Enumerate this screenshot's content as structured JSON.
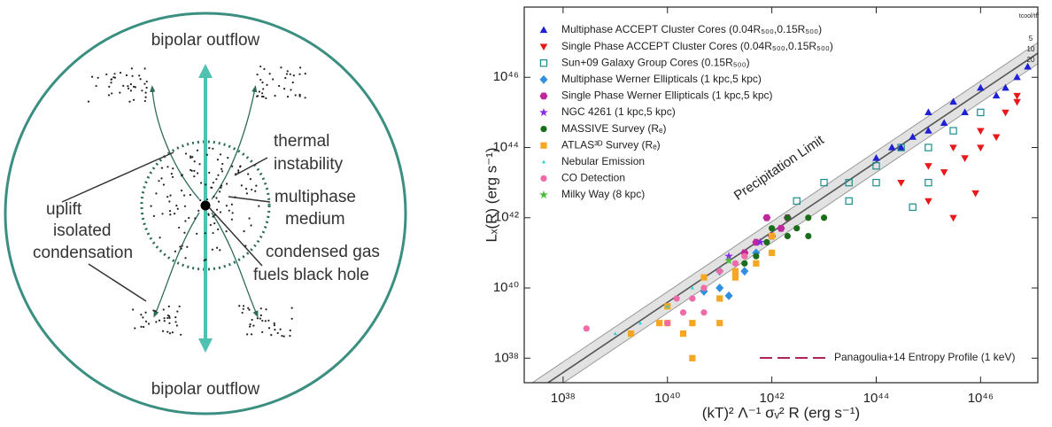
{
  "diagram": {
    "top_label": "bipolar outflow",
    "bottom_label": "bipolar outflow",
    "thermal_label": [
      "thermal",
      "instability"
    ],
    "uplift_label": "uplift",
    "medium_label": [
      "multiphase",
      "medium"
    ],
    "isolated_label": [
      "isolated",
      "condensation"
    ],
    "fuel_label": [
      "condensed gas",
      "fuels black hole"
    ]
  },
  "chart_data": {
    "type": "scatter",
    "xlabel": "(kT)² Λ⁻¹ σᵥ² R (erg s⁻¹)",
    "ylabel": "Lₓ(R)  (erg s⁻¹)",
    "xscale": "log",
    "yscale": "log",
    "xlim": [
      1.8e+37,
      1.25e+47
    ],
    "ylim": [
      2e+37,
      1e+48
    ],
    "xticks": [
      {
        "value": 1e+38,
        "label": "10³⁸"
      },
      {
        "value": 1e+40,
        "label": "10⁴⁰"
      },
      {
        "value": 1e+42,
        "label": "10⁴²"
      },
      {
        "value": 1e+44,
        "label": "10⁴⁴"
      },
      {
        "value": 1e+46,
        "label": "10⁴⁶"
      }
    ],
    "yticks": [
      {
        "value": 1e+38,
        "label": "10³⁸"
      },
      {
        "value": 1e+40,
        "label": "10⁴⁰"
      },
      {
        "value": 1e+42,
        "label": "10⁴²"
      },
      {
        "value": 1e+44,
        "label": "10⁴⁴"
      },
      {
        "value": 1e+46,
        "label": "10⁴⁶"
      }
    ],
    "legend": "upper left",
    "annotation": "Precipitation Limit",
    "reference_header": "tcool/tff",
    "reference_lines": [
      {
        "label": "5",
        "x": [
          1e+37,
          1e+48
        ],
        "y": [
          7.8e+36,
          7.8e+47
        ]
      },
      {
        "label": "10",
        "x": [
          1e+37,
          1e+48
        ],
        "y": [
          3.9e+36,
          3.9e+47
        ]
      },
      {
        "label": "20",
        "x": [
          1e+37,
          1e+48
        ],
        "y": [
          1.95e+36,
          1.95e+47
        ]
      }
    ],
    "extra_legend": {
      "name": "Panagoulia+14 Entropy Profile (1 keV)",
      "color": "#b0245c"
    },
    "series": [
      {
        "name": "Multiphase ACCEPT Cluster Cores (0.04R₅₀₀,0.15R₅₀₀)",
        "color": "#1f1fd6",
        "marker": "triangle",
        "open": false,
        "x": [
          1e+45,
          3e+45,
          1e+46,
          5e+46,
          2e+46,
          2e+45,
          5e+44,
          1e+44,
          3e+44,
          1e+45,
          8e+46,
          3e+46,
          5e+45,
          2e+44
        ],
        "values": [
          1e+45,
          2e+45,
          5e+45,
          1e+46,
          3e+45,
          5e+44,
          2e+44,
          5e+43,
          1e+44,
          3e+44,
          2e+46,
          5e+45,
          1e+45,
          1e+44
        ]
      },
      {
        "name": "Single Phase ACCEPT Cluster Cores (0.04R₅₀₀,0.15R₅₀₀)",
        "color": "#e8191b",
        "marker": "triangle-down",
        "open": false,
        "x": [
          3e+44,
          1e+45,
          3e+45,
          1e+46,
          3e+46,
          5e+46,
          2e+45,
          5e+45,
          1e+46,
          2e+46,
          1e+45,
          3e+45,
          8e+45,
          5e+46
        ],
        "values": [
          1e+43,
          3e+43,
          1e+44,
          3e+44,
          1e+45,
          3e+45,
          2e+43,
          5e+43,
          1e+44,
          2e+44,
          3e+42,
          1e+42,
          5e+42,
          2e+45
        ]
      },
      {
        "name": "Sun+09 Galaxy Group Cores (0.15R₅₀₀)",
        "color": "#1c8c8c",
        "marker": "square",
        "open": true,
        "x": [
          3e+42,
          1e+43,
          3e+43,
          1e+44,
          3e+44,
          1e+45,
          3e+45,
          1e+44,
          3e+43,
          1e+45,
          5e+44,
          1e+46
        ],
        "values": [
          3e+42,
          1e+43,
          1e+43,
          3e+43,
          1e+44,
          1e+44,
          3e+44,
          1e+43,
          3e+42,
          1e+43,
          2e+42,
          1e+45
        ]
      },
      {
        "name": "Multiphase Werner Ellipticals (1 kpc,5 kpc)",
        "color": "#2f8fe0",
        "marker": "diamond",
        "open": false,
        "x": [
          5e+40,
          1e+41,
          3e+41,
          1e+41,
          5e+41,
          1.5e+41
        ],
        "values": [
          8e+39,
          1e+40,
          3e+40,
          3e+40,
          1e+41,
          6e+39
        ]
      },
      {
        "name": "Single Phase Werner Ellipticals (1 kpc,5 kpc)",
        "color": "#c0279b",
        "marker": "hexagon",
        "open": false,
        "x": [
          5e+41,
          1e+42,
          2e+42,
          3e+41,
          1.5e+42,
          8e+41
        ],
        "values": [
          2e+41,
          3e+41,
          1e+42,
          1e+41,
          5e+41,
          1e+42
        ]
      },
      {
        "name": "NGC 4261 (1 kpc,5 kpc)",
        "color": "#8a2be2",
        "marker": "star",
        "open": false,
        "x": [
          1.5e+41,
          6e+41
        ],
        "values": [
          8e+40,
          2e+41
        ]
      },
      {
        "name": "MASSIVE Survey (Rₑ)",
        "color": "#1a6e1a",
        "marker": "circle",
        "open": false,
        "x": [
          3e+41,
          1e+42,
          2e+42,
          5e+42,
          1e+42,
          3e+42,
          8e+41,
          2e+42,
          5e+42,
          1e+43,
          5e+41
        ],
        "values": [
          5e+40,
          1e+41,
          3e+41,
          1e+42,
          5e+41,
          5e+41,
          2e+41,
          1e+42,
          3e+41,
          1e+42,
          8e+40
        ]
      },
      {
        "name": "ATLAS³ᴰ Survey (Rₑ)",
        "color": "#f5a623",
        "marker": "square",
        "open": false,
        "x": [
          2e+39,
          7e+39,
          1e+40,
          2e+40,
          3e+40,
          1e+40,
          1e+41,
          2e+41,
          5e+41,
          1e+42,
          1e+41,
          3e+40,
          2e+41,
          5e+40,
          1e+42
        ],
        "values": [
          5e+38,
          1e+39,
          1e+39,
          5e+38,
          1e+39,
          3e+39,
          1e+39,
          2e+40,
          5e+40,
          3e+41,
          5e+39,
          1e+38,
          3e+40,
          2e+40,
          1e+41
        ]
      },
      {
        "name": "Nebular Emission",
        "color": "#2ad0d8",
        "marker": "small-triangle",
        "open": false,
        "x": [
          1e+39,
          3e+39,
          1e+40,
          3e+40
        ],
        "values": [
          5e+38,
          1e+39,
          3e+39,
          1e+40
        ]
      },
      {
        "name": "CO Detection",
        "color": "#f06aa8",
        "marker": "circle",
        "open": false,
        "x": [
          2.8e+38,
          1e+40,
          2e+40,
          3e+40,
          5e+40,
          1.5e+40,
          1e+41,
          2e+41,
          3e+41,
          5e+40
        ],
        "values": [
          7e+38,
          1e+39,
          2e+39,
          5e+39,
          1e+40,
          5e+39,
          3e+40,
          5e+40,
          8e+40,
          2e+39
        ]
      },
      {
        "name": "Milky Way (8 kpc)",
        "color": "#4cbb3c",
        "marker": "star",
        "open": false,
        "x": [
          1.5e+41
        ],
        "values": [
          6e+40
        ]
      }
    ]
  }
}
